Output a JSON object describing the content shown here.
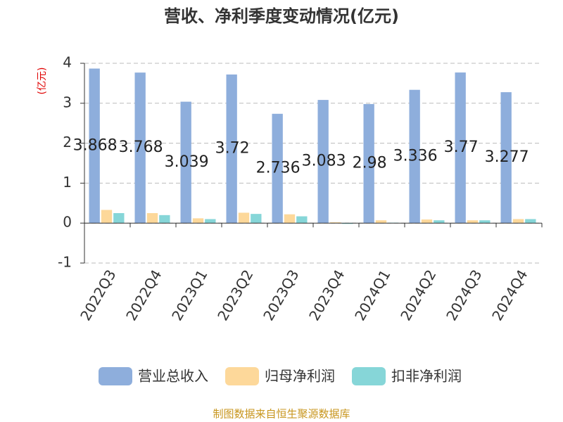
{
  "chart_data": {
    "type": "bar",
    "title": "营收、净利季度变动情况(亿元)",
    "y_label": "(亿元)",
    "source": "制图数据来自恒生聚源数据库",
    "categories": [
      "2022Q3",
      "2022Q4",
      "2023Q1",
      "2023Q2",
      "2023Q3",
      "2023Q4",
      "2024Q1",
      "2024Q2",
      "2024Q3",
      "2024Q4"
    ],
    "series": [
      {
        "name": "营业总收入",
        "color": "#8eaedc",
        "values": [
          3.868,
          3.768,
          3.039,
          3.72,
          2.736,
          3.083,
          2.98,
          3.336,
          3.77,
          3.277
        ]
      },
      {
        "name": "归母净利润",
        "color": "#fdd89a",
        "values": [
          0.33,
          0.25,
          0.12,
          0.26,
          0.22,
          0.02,
          0.07,
          0.09,
          0.07,
          0.1
        ]
      },
      {
        "name": "扣非净利润",
        "color": "#86d6d8",
        "values": [
          0.25,
          0.2,
          0.1,
          0.23,
          0.17,
          -0.02,
          0.01,
          0.07,
          0.07,
          0.1
        ]
      }
    ],
    "ylim": [
      -1,
      4
    ],
    "yticks": [
      -1,
      0,
      1,
      2,
      3,
      4
    ],
    "grid": true,
    "legend": "bottom"
  }
}
